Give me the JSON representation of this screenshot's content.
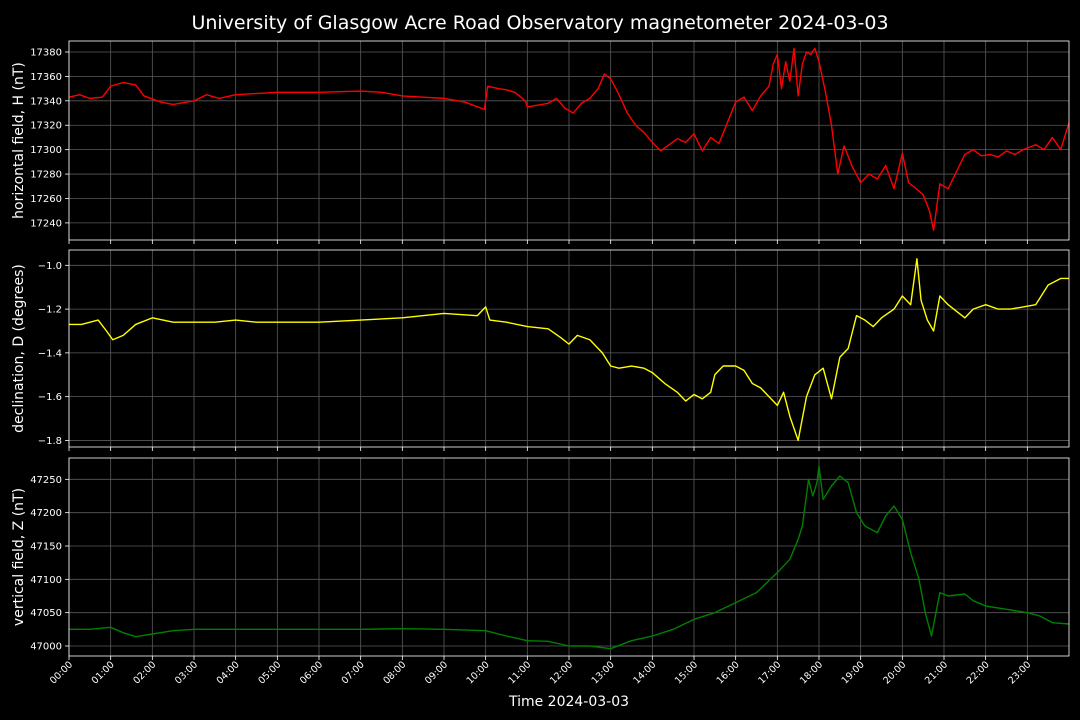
{
  "chart_data": {
    "type": "line",
    "title": "University of Glasgow Acre Road Observatory magnetometer 2024-03-03",
    "xlabel": "Time 2024-03-03",
    "x_range_hours": [
      0,
      24
    ],
    "x_ticks": [
      "00:00",
      "01:00",
      "02:00",
      "03:00",
      "04:00",
      "05:00",
      "06:00",
      "07:00",
      "08:00",
      "09:00",
      "10:00",
      "11:00",
      "12:00",
      "13:00",
      "14:00",
      "15:00",
      "16:00",
      "17:00",
      "18:00",
      "19:00",
      "20:00",
      "21:00",
      "22:00",
      "23:00"
    ],
    "grid": true,
    "panels": [
      {
        "id": "H",
        "ylabel": "horizontal field, H (nT)",
        "color": "#ff0000",
        "ylim": [
          17226,
          17389
        ],
        "yticks": [
          17240,
          17260,
          17280,
          17300,
          17320,
          17340,
          17360,
          17380
        ],
        "ytick_labels": [
          "17240",
          "17260",
          "17280",
          "17300",
          "17320",
          "17340",
          "17360",
          "17380"
        ],
        "series": [
          [
            0.0,
            17343
          ],
          [
            0.25,
            17345
          ],
          [
            0.5,
            17342
          ],
          [
            0.8,
            17343
          ],
          [
            1.0,
            17352
          ],
          [
            1.3,
            17355
          ],
          [
            1.6,
            17353
          ],
          [
            1.8,
            17344
          ],
          [
            2.2,
            17339
          ],
          [
            2.5,
            17337
          ],
          [
            3.0,
            17340
          ],
          [
            3.3,
            17345
          ],
          [
            3.6,
            17342
          ],
          [
            4.0,
            17345
          ],
          [
            5.0,
            17347
          ],
          [
            6.0,
            17347
          ],
          [
            7.0,
            17348
          ],
          [
            7.5,
            17347
          ],
          [
            8.0,
            17344
          ],
          [
            8.5,
            17343
          ],
          [
            9.0,
            17342
          ],
          [
            9.5,
            17339
          ],
          [
            9.97,
            17333
          ],
          [
            10.05,
            17352
          ],
          [
            10.3,
            17350
          ],
          [
            10.5,
            17349
          ],
          [
            10.7,
            17347
          ],
          [
            10.95,
            17340
          ],
          [
            11.0,
            17335
          ],
          [
            11.5,
            17338
          ],
          [
            11.7,
            17342
          ],
          [
            11.9,
            17334
          ],
          [
            12.1,
            17330
          ],
          [
            12.3,
            17338
          ],
          [
            12.5,
            17342
          ],
          [
            12.7,
            17350
          ],
          [
            12.85,
            17362
          ],
          [
            13.0,
            17358
          ],
          [
            13.2,
            17345
          ],
          [
            13.4,
            17330
          ],
          [
            13.6,
            17320
          ],
          [
            13.8,
            17314
          ],
          [
            14.0,
            17306
          ],
          [
            14.2,
            17299
          ],
          [
            14.4,
            17304
          ],
          [
            14.6,
            17309
          ],
          [
            14.8,
            17306
          ],
          [
            15.0,
            17313
          ],
          [
            15.2,
            17299
          ],
          [
            15.4,
            17310
          ],
          [
            15.6,
            17305
          ],
          [
            15.8,
            17322
          ],
          [
            16.0,
            17339
          ],
          [
            16.2,
            17343
          ],
          [
            16.4,
            17332
          ],
          [
            16.6,
            17344
          ],
          [
            16.8,
            17352
          ],
          [
            16.9,
            17370
          ],
          [
            17.0,
            17378
          ],
          [
            17.1,
            17350
          ],
          [
            17.2,
            17372
          ],
          [
            17.3,
            17356
          ],
          [
            17.4,
            17383
          ],
          [
            17.5,
            17344
          ],
          [
            17.6,
            17370
          ],
          [
            17.7,
            17380
          ],
          [
            17.8,
            17378
          ],
          [
            17.9,
            17383
          ],
          [
            18.0,
            17372
          ],
          [
            18.15,
            17348
          ],
          [
            18.3,
            17320
          ],
          [
            18.45,
            17280
          ],
          [
            18.6,
            17303
          ],
          [
            18.8,
            17286
          ],
          [
            19.0,
            17273
          ],
          [
            19.2,
            17280
          ],
          [
            19.4,
            17276
          ],
          [
            19.6,
            17287
          ],
          [
            19.8,
            17268
          ],
          [
            20.0,
            17297
          ],
          [
            20.15,
            17273
          ],
          [
            20.3,
            17269
          ],
          [
            20.5,
            17263
          ],
          [
            20.65,
            17250
          ],
          [
            20.75,
            17234
          ],
          [
            20.9,
            17272
          ],
          [
            21.1,
            17268
          ],
          [
            21.3,
            17282
          ],
          [
            21.5,
            17296
          ],
          [
            21.7,
            17300
          ],
          [
            21.9,
            17295
          ],
          [
            22.1,
            17296
          ],
          [
            22.3,
            17294
          ],
          [
            22.5,
            17299
          ],
          [
            22.7,
            17296
          ],
          [
            22.9,
            17300
          ],
          [
            23.2,
            17304
          ],
          [
            23.4,
            17300
          ],
          [
            23.6,
            17310
          ],
          [
            23.8,
            17300
          ],
          [
            24.0,
            17322
          ]
        ]
      },
      {
        "id": "D",
        "ylabel": "declination, D (degrees)",
        "color": "#ffff00",
        "ylim": [
          -1.83,
          -0.93
        ],
        "yticks": [
          -1.8,
          -1.6,
          -1.4,
          -1.2,
          -1.0
        ],
        "ytick_labels": [
          "−1.8",
          "−1.6",
          "−1.4",
          "−1.2",
          "−1.0"
        ],
        "series": [
          [
            0.0,
            -1.27
          ],
          [
            0.3,
            -1.27
          ],
          [
            0.7,
            -1.25
          ],
          [
            0.9,
            -1.3
          ],
          [
            1.05,
            -1.34
          ],
          [
            1.3,
            -1.32
          ],
          [
            1.6,
            -1.27
          ],
          [
            2.0,
            -1.24
          ],
          [
            2.5,
            -1.26
          ],
          [
            3.0,
            -1.26
          ],
          [
            3.5,
            -1.26
          ],
          [
            4.0,
            -1.25
          ],
          [
            4.5,
            -1.26
          ],
          [
            5.0,
            -1.26
          ],
          [
            6.0,
            -1.26
          ],
          [
            7.0,
            -1.25
          ],
          [
            8.0,
            -1.24
          ],
          [
            9.0,
            -1.22
          ],
          [
            9.8,
            -1.23
          ],
          [
            10.0,
            -1.19
          ],
          [
            10.1,
            -1.25
          ],
          [
            10.5,
            -1.26
          ],
          [
            11.0,
            -1.28
          ],
          [
            11.5,
            -1.29
          ],
          [
            11.8,
            -1.33
          ],
          [
            12.0,
            -1.36
          ],
          [
            12.2,
            -1.32
          ],
          [
            12.5,
            -1.34
          ],
          [
            12.8,
            -1.4
          ],
          [
            13.0,
            -1.46
          ],
          [
            13.2,
            -1.47
          ],
          [
            13.5,
            -1.46
          ],
          [
            13.8,
            -1.47
          ],
          [
            14.0,
            -1.49
          ],
          [
            14.3,
            -1.54
          ],
          [
            14.6,
            -1.58
          ],
          [
            14.8,
            -1.62
          ],
          [
            15.0,
            -1.59
          ],
          [
            15.2,
            -1.61
          ],
          [
            15.4,
            -1.58
          ],
          [
            15.5,
            -1.5
          ],
          [
            15.7,
            -1.46
          ],
          [
            16.0,
            -1.46
          ],
          [
            16.2,
            -1.48
          ],
          [
            16.4,
            -1.54
          ],
          [
            16.6,
            -1.56
          ],
          [
            16.8,
            -1.6
          ],
          [
            17.0,
            -1.64
          ],
          [
            17.15,
            -1.58
          ],
          [
            17.3,
            -1.69
          ],
          [
            17.5,
            -1.8
          ],
          [
            17.7,
            -1.6
          ],
          [
            17.9,
            -1.5
          ],
          [
            18.1,
            -1.47
          ],
          [
            18.3,
            -1.61
          ],
          [
            18.5,
            -1.42
          ],
          [
            18.7,
            -1.38
          ],
          [
            18.9,
            -1.23
          ],
          [
            19.1,
            -1.25
          ],
          [
            19.3,
            -1.28
          ],
          [
            19.5,
            -1.24
          ],
          [
            19.8,
            -1.2
          ],
          [
            20.0,
            -1.14
          ],
          [
            20.2,
            -1.18
          ],
          [
            20.35,
            -0.97
          ],
          [
            20.45,
            -1.16
          ],
          [
            20.6,
            -1.25
          ],
          [
            20.75,
            -1.3
          ],
          [
            20.9,
            -1.14
          ],
          [
            21.1,
            -1.18
          ],
          [
            21.3,
            -1.21
          ],
          [
            21.5,
            -1.24
          ],
          [
            21.7,
            -1.2
          ],
          [
            22.0,
            -1.18
          ],
          [
            22.3,
            -1.2
          ],
          [
            22.6,
            -1.2
          ],
          [
            22.9,
            -1.19
          ],
          [
            23.2,
            -1.18
          ],
          [
            23.5,
            -1.09
          ],
          [
            23.8,
            -1.06
          ],
          [
            24.0,
            -1.06
          ]
        ]
      },
      {
        "id": "Z",
        "ylabel": "vertical field, Z (nT)",
        "color": "#008000",
        "ylim": [
          46985,
          47282
        ],
        "yticks": [
          47000,
          47050,
          47100,
          47150,
          47200,
          47250
        ],
        "ytick_labels": [
          "47000",
          "47050",
          "47100",
          "47150",
          "47200",
          "47250"
        ],
        "series": [
          [
            0.0,
            47025
          ],
          [
            0.5,
            47025
          ],
          [
            1.0,
            47028
          ],
          [
            1.3,
            47020
          ],
          [
            1.6,
            47014
          ],
          [
            2.0,
            47018
          ],
          [
            2.5,
            47023
          ],
          [
            3.0,
            47025
          ],
          [
            4.0,
            47025
          ],
          [
            5.0,
            47025
          ],
          [
            6.0,
            47025
          ],
          [
            7.0,
            47025
          ],
          [
            8.0,
            47026
          ],
          [
            9.0,
            47025
          ],
          [
            10.0,
            47023
          ],
          [
            10.5,
            47015
          ],
          [
            11.0,
            47008
          ],
          [
            11.5,
            47007
          ],
          [
            12.0,
            47000
          ],
          [
            12.5,
            47000
          ],
          [
            13.0,
            46996
          ],
          [
            13.5,
            47008
          ],
          [
            14.0,
            47015
          ],
          [
            14.5,
            47025
          ],
          [
            15.0,
            47040
          ],
          [
            15.5,
            47050
          ],
          [
            16.0,
            47065
          ],
          [
            16.5,
            47080
          ],
          [
            17.0,
            47110
          ],
          [
            17.3,
            47130
          ],
          [
            17.5,
            47160
          ],
          [
            17.6,
            47180
          ],
          [
            17.75,
            47250
          ],
          [
            17.85,
            47225
          ],
          [
            17.95,
            47245
          ],
          [
            18.0,
            47270
          ],
          [
            18.1,
            47220
          ],
          [
            18.3,
            47240
          ],
          [
            18.5,
            47255
          ],
          [
            18.7,
            47245
          ],
          [
            18.9,
            47200
          ],
          [
            19.1,
            47180
          ],
          [
            19.4,
            47170
          ],
          [
            19.6,
            47195
          ],
          [
            19.8,
            47210
          ],
          [
            20.0,
            47190
          ],
          [
            20.2,
            47140
          ],
          [
            20.4,
            47100
          ],
          [
            20.55,
            47050
          ],
          [
            20.7,
            47015
          ],
          [
            20.9,
            47080
          ],
          [
            21.1,
            47075
          ],
          [
            21.5,
            47078
          ],
          [
            21.7,
            47068
          ],
          [
            22.0,
            47060
          ],
          [
            22.5,
            47055
          ],
          [
            23.0,
            47050
          ],
          [
            23.3,
            47045
          ],
          [
            23.6,
            47035
          ],
          [
            24.0,
            47033
          ]
        ]
      }
    ]
  }
}
